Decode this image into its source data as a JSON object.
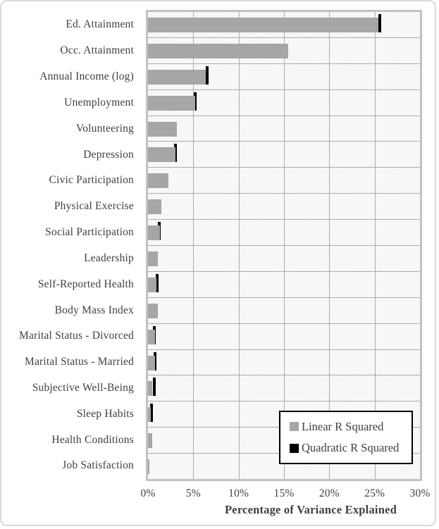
{
  "chart_data": {
    "type": "bar",
    "orientation": "horizontal",
    "title": "",
    "xlabel": "Percentage of Variance Explained",
    "ylabel": "",
    "xlim": [
      0,
      30
    ],
    "x_ticks": [
      "0%",
      "5%",
      "10%",
      "15%",
      "20%",
      "25%",
      "30%"
    ],
    "grid": true,
    "legend_position": "inside-bottom-right",
    "plot_background": "light-checker-pattern",
    "categories": [
      "Ed. Attainment",
      "Occ. Attainment",
      "Annual Income (log)",
      "Unemployment",
      "Volunteering",
      "Depression",
      "Civic Participation",
      "Physical Exercise",
      "Social Participation",
      "Leadership",
      "Self-Reported Health",
      "Body Mass Index",
      "Marital Status - Divorced",
      "Marital Status - Married",
      "Subjective Well-Being",
      "Sleep Habits",
      "Health Conditions",
      "Job Satisfaction"
    ],
    "series": [
      {
        "name": "Linear R Squared",
        "color": "#a6a6a6",
        "values": [
          25.4,
          15.5,
          6.4,
          5.2,
          3.2,
          3.0,
          2.25,
          1.45,
          1.3,
          1.1,
          0.95,
          1.05,
          0.75,
          0.75,
          0.5,
          0.3,
          0.45,
          0.15
        ]
      },
      {
        "name": "Quadratic R Squared",
        "color": "#000000",
        "values": [
          25.7,
          null,
          6.7,
          5.35,
          null,
          3.15,
          null,
          null,
          1.4,
          null,
          1.15,
          null,
          0.85,
          0.9,
          0.85,
          0.55,
          null,
          null
        ]
      }
    ]
  },
  "colors": {
    "text": "#3f3f3f",
    "gridline": "#ababab",
    "plot_border": "#c2c2c2",
    "outer_border": "#d9d9d9",
    "legend_border": "#000000"
  }
}
